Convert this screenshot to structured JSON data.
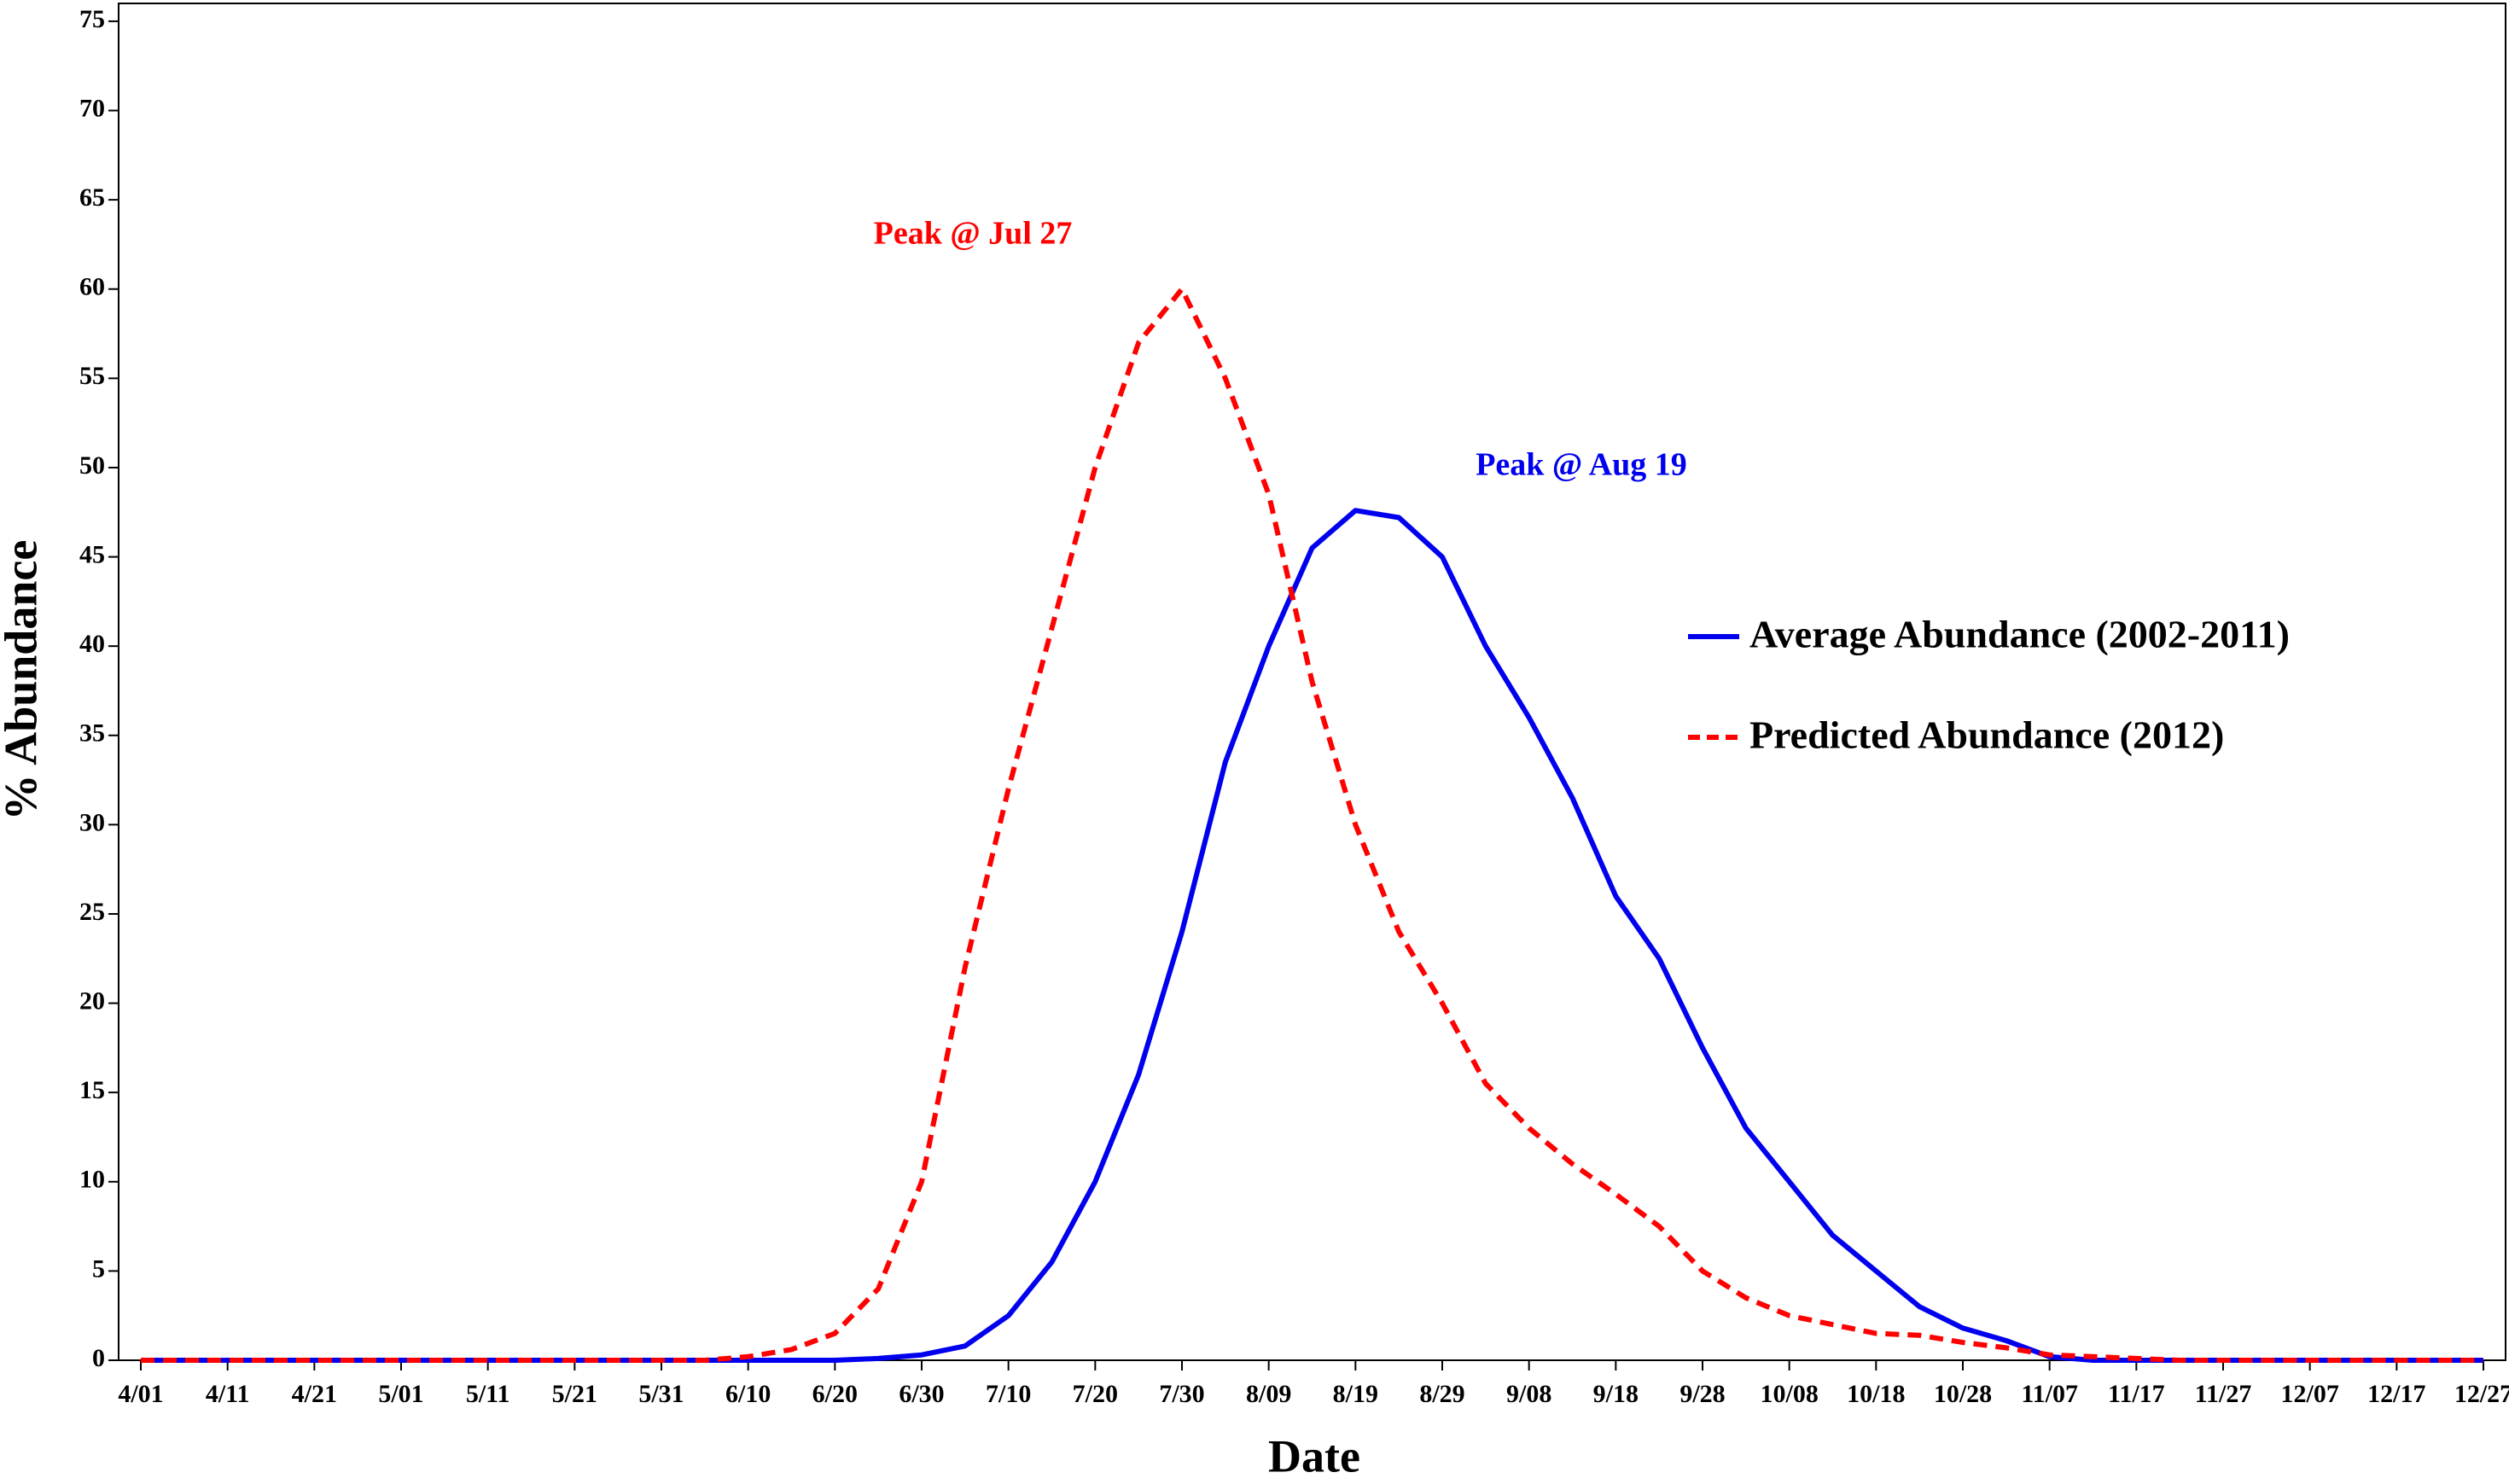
{
  "chart_data": {
    "type": "line",
    "x_label": "Date",
    "y_label": "% Abundance",
    "x": [
      "4/01",
      "4/06",
      "4/11",
      "4/16",
      "4/21",
      "4/26",
      "5/01",
      "5/06",
      "5/11",
      "5/16",
      "5/21",
      "5/26",
      "5/31",
      "6/05",
      "6/10",
      "6/15",
      "6/20",
      "6/25",
      "6/30",
      "7/05",
      "7/10",
      "7/15",
      "7/20",
      "7/25",
      "7/30",
      "8/04",
      "8/09",
      "8/14",
      "8/19",
      "8/24",
      "8/29",
      "9/03",
      "9/08",
      "9/13",
      "9/18",
      "9/23",
      "9/28",
      "10/03",
      "10/08",
      "10/13",
      "10/18",
      "10/23",
      "10/28",
      "11/02",
      "11/07",
      "11/12",
      "11/17",
      "11/22",
      "11/27",
      "12/02",
      "12/07",
      "12/12",
      "12/17",
      "12/22",
      "12/27"
    ],
    "series": [
      {
        "name": "Average Abundance (2002-2011)",
        "color": "#0000ee",
        "dashed": false,
        "values": [
          0,
          0,
          0,
          0,
          0,
          0,
          0,
          0,
          0,
          0,
          0,
          0,
          0,
          0,
          0,
          0,
          0,
          0.1,
          0.3,
          0.8,
          2.5,
          5.5,
          10,
          16,
          24,
          33.5,
          40,
          45.5,
          47.6,
          47.2,
          45,
          40,
          36,
          31.5,
          26,
          22.5,
          17.5,
          13,
          10,
          7,
          5,
          3,
          1.8,
          1.1,
          0.2,
          0,
          0,
          0,
          0,
          0,
          0,
          0,
          0,
          0,
          0
        ]
      },
      {
        "name": "Predicted Abundance (2012)",
        "color": "#ff0000",
        "dashed": true,
        "values": [
          0,
          0,
          0,
          0,
          0,
          0,
          0,
          0,
          0,
          0,
          0,
          0,
          0,
          0,
          0.2,
          0.6,
          1.5,
          4,
          10,
          22,
          32,
          41,
          50,
          57,
          60,
          55,
          48.5,
          38,
          30,
          24,
          20,
          15.5,
          13,
          11,
          9.3,
          7.5,
          5,
          3.5,
          2.5,
          2,
          1.5,
          1.4,
          1,
          0.7,
          0.3,
          0.2,
          0.1,
          0,
          0,
          0,
          0,
          0,
          0,
          0,
          0
        ]
      }
    ],
    "annotations": [
      "Peak @ Jul 27",
      "Peak @ Aug 19"
    ],
    "xticks": [
      "4/01",
      "4/11",
      "4/21",
      "5/01",
      "5/11",
      "5/21",
      "5/31",
      "6/10",
      "6/20",
      "6/30",
      "7/10",
      "7/20",
      "7/30",
      "8/09",
      "8/19",
      "8/29",
      "9/08",
      "9/18",
      "9/28",
      "10/08",
      "10/18",
      "10/28",
      "11/07",
      "11/17",
      "11/27",
      "12/07",
      "12/17",
      "12/27"
    ],
    "ylim": [
      0,
      76
    ],
    "yticks": [
      0,
      5,
      10,
      15,
      20,
      25,
      30,
      35,
      40,
      45,
      50,
      55,
      60,
      65,
      70,
      75
    ]
  }
}
